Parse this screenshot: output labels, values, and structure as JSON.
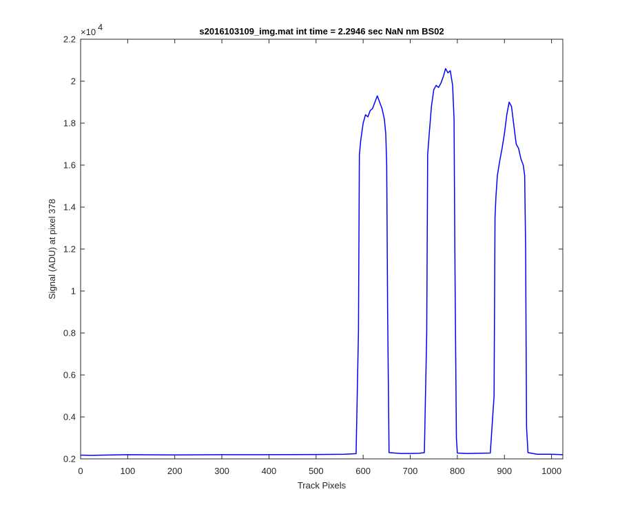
{
  "chart_data": {
    "type": "line",
    "title": "s2016103109_img.mat int time = 2.2946 sec  NaN nm BS02",
    "xlabel": "Track Pixels",
    "ylabel": "Signal (ADU) at pixel 378",
    "y_exponent_label": "×10",
    "y_exponent_power": "4",
    "xlim": [
      0,
      1024
    ],
    "ylim": [
      0.2,
      2.2
    ],
    "y_scale_note": "values in units of 1e4 ADU",
    "grid": false,
    "box": true,
    "x_ticks": [
      0,
      100,
      200,
      300,
      400,
      500,
      600,
      700,
      800,
      900,
      1000
    ],
    "x_tick_labels": [
      "0",
      "100",
      "200",
      "300",
      "400",
      "500",
      "600",
      "700",
      "800",
      "900",
      "1000"
    ],
    "y_ticks": [
      0.2,
      0.4,
      0.6,
      0.8,
      1.0,
      1.2,
      1.4,
      1.6,
      1.8,
      2.0,
      2.2
    ],
    "y_tick_labels": [
      "0.2",
      "0.4",
      "0.6",
      "0.8",
      "1",
      "1.2",
      "1.4",
      "1.6",
      "1.8",
      "2",
      "2.2"
    ],
    "series": [
      {
        "color": "#0000ff",
        "x": [
          0,
          20,
          50,
          100,
          200,
          300,
          400,
          500,
          560,
          585,
          590,
          592,
          595,
          600,
          605,
          610,
          615,
          620,
          625,
          630,
          635,
          640,
          645,
          648,
          650,
          652,
          655,
          680,
          700,
          720,
          730,
          735,
          737,
          740,
          745,
          750,
          755,
          760,
          765,
          770,
          775,
          780,
          785,
          790,
          793,
          795,
          798,
          800,
          820,
          850,
          870,
          878,
          880,
          882,
          885,
          890,
          895,
          900,
          905,
          910,
          915,
          920,
          925,
          930,
          935,
          940,
          943,
          945,
          947,
          950,
          970,
          1000,
          1024
        ],
        "y": [
          0.218,
          0.217,
          0.218,
          0.22,
          0.219,
          0.22,
          0.22,
          0.221,
          0.222,
          0.225,
          0.8,
          1.65,
          1.72,
          1.8,
          1.84,
          1.83,
          1.86,
          1.87,
          1.9,
          1.93,
          1.9,
          1.87,
          1.82,
          1.75,
          1.6,
          0.9,
          0.23,
          0.226,
          0.226,
          0.227,
          0.23,
          0.8,
          1.65,
          1.74,
          1.88,
          1.96,
          1.98,
          1.97,
          1.99,
          2.02,
          2.06,
          2.04,
          2.05,
          1.98,
          1.82,
          1.1,
          0.3,
          0.228,
          0.226,
          0.227,
          0.228,
          0.5,
          1.35,
          1.45,
          1.55,
          1.62,
          1.68,
          1.75,
          1.84,
          1.9,
          1.88,
          1.79,
          1.7,
          1.68,
          1.63,
          1.6,
          1.55,
          1.2,
          0.35,
          0.23,
          0.222,
          0.222,
          0.22
        ]
      }
    ]
  }
}
